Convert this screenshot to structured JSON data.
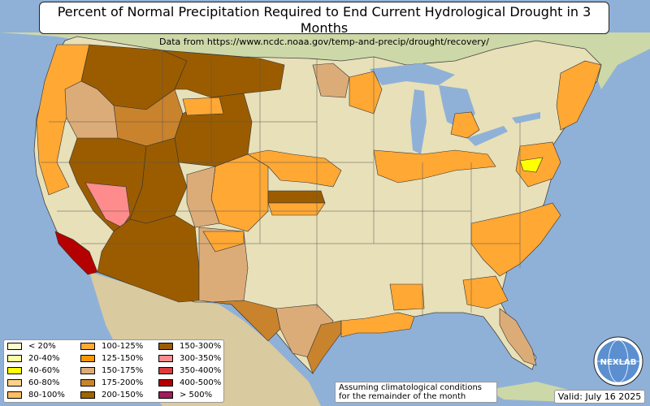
{
  "title": "Percent of Normal Precipitation Required to End Current Hydrological Drought in 3 Months",
  "subtitle": "Data from https://www.ncdc.noaa.gov/temp-and-precip/drought/recovery/",
  "note_line1": "Assuming climatological conditions",
  "note_line2": "for the remainder of the month",
  "valid": "Valid: July 16 2025",
  "logo_text": "NEXLAB",
  "colors": {
    "ocean": "#8fb1d8",
    "land": "#e8e0b8",
    "c100_125": "#ffa834",
    "c150_175": "#dcac78",
    "c175_200": "#c9832c",
    "c200_300": "#9b5c00",
    "c300_350": "#ff8c8c",
    "c400_500": "#b40000"
  },
  "legend": [
    {
      "label": "< 20%",
      "color": "#ffffcc"
    },
    {
      "label": "20-40%",
      "color": "#ffffa0"
    },
    {
      "label": "40-60%",
      "color": "#ffff00"
    },
    {
      "label": "60-80%",
      "color": "#ffd28c"
    },
    {
      "label": "80-100%",
      "color": "#ffbe64"
    },
    {
      "label": "100-125%",
      "color": "#ffa834"
    },
    {
      "label": "125-150%",
      "color": "#ff9600"
    },
    {
      "label": "150-175%",
      "color": "#dcac78"
    },
    {
      "label": "175-200%",
      "color": "#c9832c"
    },
    {
      "label": "200-150%",
      "color": "#a06400"
    },
    {
      "label": "150-300%",
      "color": "#9b5c00"
    },
    {
      "label": "300-350%",
      "color": "#ff8c8c"
    },
    {
      "label": "350-400%",
      "color": "#dc3c3c"
    },
    {
      "label": "400-500%",
      "color": "#b40000"
    },
    {
      "label": "> 500%",
      "color": "#a01e5a"
    }
  ]
}
